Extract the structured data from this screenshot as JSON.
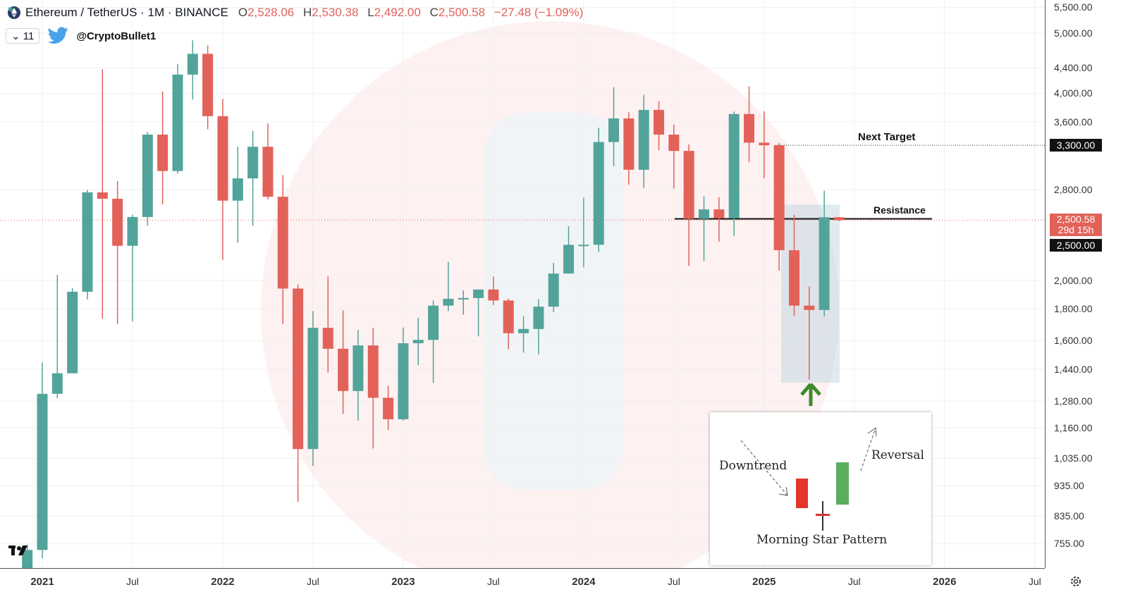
{
  "header": {
    "symbol": "Ethereum / TetherUS · 1M · BINANCE",
    "open_label": "O",
    "open": "2,528.06",
    "high_label": "H",
    "high": "2,530.38",
    "low_label": "L",
    "low": "2,492.00",
    "close_label": "C",
    "close": "2,500.58",
    "change": "−27.48 (−1.09%)",
    "indicator_count": "11",
    "twitter_handle": "@CryptoBullet1"
  },
  "colors": {
    "up": "#52a49a",
    "down": "#e2625a",
    "highlight": "#b7d3e0",
    "arrow": "#3f8a2c"
  },
  "annotations": {
    "next_target": "Next Target",
    "resistance": "Resistance",
    "inset": {
      "downtrend": "Downtrend",
      "reversal": "Reversal",
      "title": "Morning Star Pattern"
    }
  },
  "price_labels": {
    "target": "3,300.00",
    "last": "2,500.58",
    "countdown": "29d 15h",
    "resistance": "2,500.00"
  },
  "chart_data": {
    "type": "candlestick",
    "title": "Ethereum / TetherUS · 1M · BINANCE",
    "y_scale": "log",
    "ylim": [
      680,
      5600
    ],
    "grid": true,
    "y_ticks": [
      "5,500.00",
      "5,000.00",
      "4,400.00",
      "4,000.00",
      "3,600.00",
      "2,800.00",
      "2,000.00",
      "1,800.00",
      "1,600.00",
      "1,440.00",
      "1,280.00",
      "1,160.00",
      "1,035.00",
      "935.00",
      "835.00",
      "755.00"
    ],
    "x_ticks": [
      "2021",
      "Jul",
      "2022",
      "Jul",
      "2023",
      "Jul",
      "2024",
      "Jul",
      "2025",
      "Jul",
      "2026",
      "Jul"
    ],
    "levels": {
      "next_target": 3300,
      "resistance": 2500,
      "last_price": 2500.58
    },
    "candles": [
      [
        "2020-12",
        616,
        752,
        535,
        737
      ],
      [
        "2021-01",
        737,
        1476,
        714,
        1314
      ],
      [
        "2021-02",
        1314,
        2041,
        1293,
        1418
      ],
      [
        "2021-03",
        1418,
        1943,
        1439,
        1918
      ],
      [
        "2021-04",
        1918,
        2797,
        1864,
        2772
      ],
      [
        "2021-05",
        2772,
        4372,
        1736,
        2707
      ],
      [
        "2021-06",
        2707,
        2891,
        1700,
        2274
      ],
      [
        "2021-07",
        2274,
        2551,
        1718,
        2530
      ],
      [
        "2021-08",
        2530,
        3466,
        2450,
        3433
      ],
      [
        "2021-09",
        3433,
        4028,
        2651,
        3000
      ],
      [
        "2021-10",
        3000,
        4460,
        2971,
        4288
      ],
      [
        "2021-11",
        4288,
        4868,
        3908,
        4631
      ],
      [
        "2021-12",
        4631,
        4778,
        3503,
        3676
      ],
      [
        "2022-01",
        3676,
        3918,
        2159,
        2688
      ],
      [
        "2022-02",
        2688,
        3283,
        2300,
        2919
      ],
      [
        "2022-03",
        2919,
        3480,
        2449,
        3282
      ],
      [
        "2022-04",
        3282,
        3580,
        2701,
        2727
      ],
      [
        "2022-05",
        2727,
        2955,
        1700,
        1941
      ],
      [
        "2022-06",
        1941,
        1970,
        881,
        1071
      ],
      [
        "2022-07",
        1071,
        1785,
        1006,
        1678
      ],
      [
        "2022-08",
        1678,
        2030,
        1422,
        1553
      ],
      [
        "2022-09",
        1553,
        1790,
        1220,
        1328
      ],
      [
        "2022-10",
        1328,
        1664,
        1190,
        1572
      ],
      [
        "2022-11",
        1572,
        1678,
        1073,
        1295
      ],
      [
        "2022-12",
        1295,
        1353,
        1150,
        1196
      ],
      [
        "2023-01",
        1196,
        1680,
        1190,
        1585
      ],
      [
        "2023-02",
        1585,
        1742,
        1461,
        1605
      ],
      [
        "2023-03",
        1605,
        1857,
        1368,
        1822
      ],
      [
        "2023-04",
        1822,
        2142,
        1785,
        1869
      ],
      [
        "2023-05",
        1869,
        1928,
        1762,
        1874
      ],
      [
        "2023-06",
        1874,
        1929,
        1626,
        1934
      ],
      [
        "2023-07",
        1934,
        2029,
        1826,
        1857
      ],
      [
        "2023-08",
        1857,
        1870,
        1550,
        1645
      ],
      [
        "2023-09",
        1645,
        1752,
        1531,
        1671
      ],
      [
        "2023-10",
        1671,
        1865,
        1521,
        1815
      ],
      [
        "2023-11",
        1815,
        2135,
        1778,
        2052
      ],
      [
        "2023-12",
        2052,
        2445,
        2050,
        2282
      ],
      [
        "2024-01",
        2282,
        2717,
        2100,
        2283
      ],
      [
        "2024-02",
        2283,
        3522,
        2223,
        3340
      ],
      [
        "2024-03",
        3340,
        4093,
        3056,
        3645
      ],
      [
        "2024-04",
        3645,
        3730,
        2852,
        3014
      ],
      [
        "2024-05",
        3014,
        3977,
        2817,
        3762
      ],
      [
        "2024-06",
        3762,
        3887,
        3240,
        3433
      ],
      [
        "2024-07",
        3433,
        3563,
        2810,
        3232
      ],
      [
        "2024-08",
        3232,
        3310,
        2111,
        2513
      ],
      [
        "2024-09",
        2513,
        2730,
        2150,
        2602
      ],
      [
        "2024-10",
        2602,
        2722,
        2310,
        2518
      ],
      [
        "2024-11",
        2518,
        3740,
        2357,
        3705
      ],
      [
        "2024-12",
        3705,
        4107,
        3100,
        3332
      ],
      [
        "2025-01",
        3332,
        3744,
        2920,
        3300
      ],
      [
        "2025-02",
        3300,
        3330,
        2075,
        2237
      ],
      [
        "2025-03",
        2237,
        2550,
        1755,
        1822
      ],
      [
        "2025-04",
        1822,
        1956,
        1385,
        1793
      ],
      [
        "2025-05",
        1793,
        2788,
        1750,
        2528
      ],
      [
        "2025-06",
        2528.06,
        2530.38,
        2492.0,
        2500.58
      ]
    ]
  }
}
